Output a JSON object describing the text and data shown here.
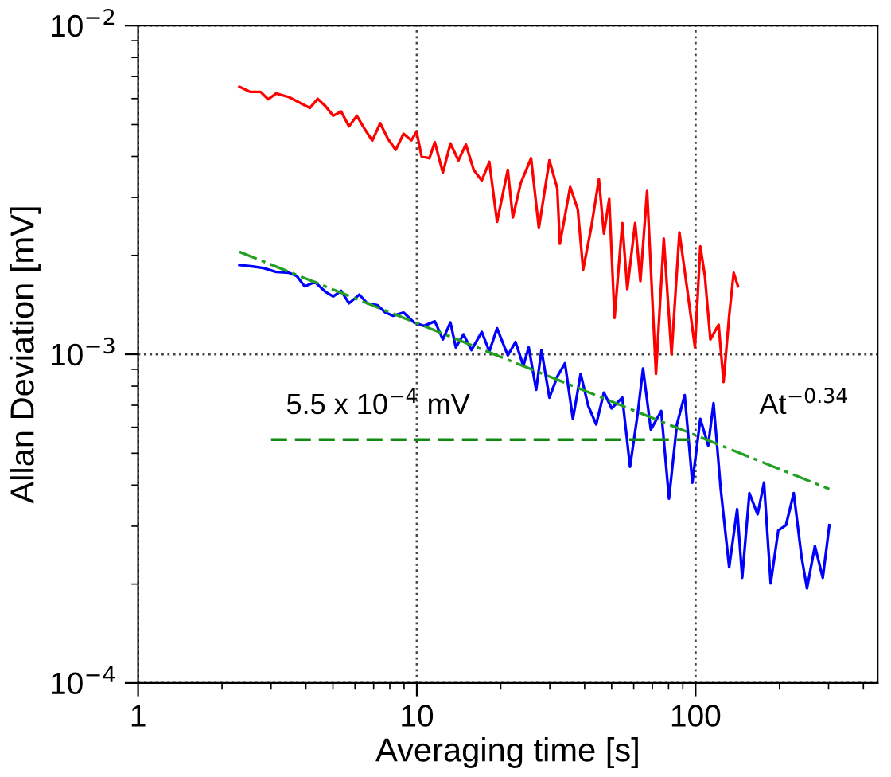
{
  "chart_data": {
    "type": "line",
    "xlabel": "Averaging time [s]",
    "ylabel": "Allan Deviation [mV]",
    "log": "xy",
    "grid": true,
    "xlim": [
      1,
      450
    ],
    "xticks": [
      1,
      10,
      100
    ],
    "ylim": [
      0.0001,
      0.01
    ],
    "yticks": [
      {
        "value": 0.0001,
        "label": "10$^{−4}$"
      },
      {
        "value": 0.001,
        "label": "10$^{−3}$"
      },
      {
        "value": 0.01,
        "label": "10$^{−2}$"
      }
    ],
    "series": [
      {
        "color": "#ff0000",
        "x": [
          2.31,
          2.52,
          2.75,
          2.93,
          3.13,
          3.48,
          3.79,
          4.13,
          4.41,
          4.7,
          5.01,
          5.35,
          5.71,
          6.09,
          6.49,
          6.92,
          7.39,
          7.88,
          8.4,
          8.96,
          9.56,
          9.98,
          10.4,
          11.1,
          11.6,
          12.4,
          13.2,
          14.1,
          15.0,
          16.0,
          17.1,
          18.2,
          19.4,
          21.2,
          22.1,
          23.6,
          25.7,
          27.4,
          29.9,
          31.9,
          32.6,
          35.5,
          37.8,
          39.5,
          42.2,
          45.0,
          46.9,
          49.0,
          51.2,
          54.6,
          56.9,
          60.7,
          63.4,
          67.0,
          72.1,
          76.9,
          82.0,
          87.5,
          93.3,
          99.5,
          104,
          108,
          113,
          121,
          126,
          132,
          137,
          142
        ],
        "values": [
          0.00652,
          0.00629,
          0.00629,
          0.00597,
          0.00622,
          0.00606,
          0.00584,
          0.00562,
          0.00599,
          0.00569,
          0.00532,
          0.00548,
          0.00494,
          0.00532,
          0.00486,
          0.00447,
          0.00505,
          0.00452,
          0.00419,
          0.00469,
          0.00448,
          0.00476,
          0.004,
          0.00395,
          0.00442,
          0.00357,
          0.00438,
          0.00389,
          0.00435,
          0.00364,
          0.00338,
          0.00385,
          0.00253,
          0.00364,
          0.00261,
          0.00332,
          0.00395,
          0.00242,
          0.00389,
          0.0032,
          0.00217,
          0.00323,
          0.00276,
          0.00181,
          0.00242,
          0.00341,
          0.00233,
          0.00297,
          0.00129,
          0.00251,
          0.00158,
          0.00251,
          0.00167,
          0.00314,
          0.000872,
          0.00225,
          0.001,
          0.00235,
          0.00158,
          0.00105,
          0.00213,
          0.00173,
          0.00111,
          0.00123,
          0.000824,
          0.00131,
          0.00177,
          0.00161
        ]
      },
      {
        "color": "#0000ff",
        "x": [
          2.31,
          2.58,
          2.81,
          3.13,
          3.48,
          3.71,
          3.96,
          4.31,
          4.7,
          5.01,
          5.35,
          5.71,
          6.22,
          6.63,
          7.23,
          7.71,
          8.22,
          8.96,
          9.77,
          10.6,
          11.6,
          12.4,
          13.2,
          13.8,
          14.7,
          15.7,
          17.1,
          18.2,
          19.4,
          21.2,
          22.6,
          24.1,
          25.2,
          26.8,
          28.0,
          29.9,
          31.9,
          34.0,
          36.3,
          38.7,
          41.2,
          44.0,
          46.9,
          50.0,
          54.6,
          58.2,
          62.0,
          64.8,
          69.1,
          75.3,
          80.3,
          85.7,
          91.4,
          97.4,
          104,
          111,
          116,
          123,
          132,
          141,
          147,
          156,
          167,
          176,
          186,
          198,
          211,
          225,
          240,
          251,
          268,
          286,
          302
        ],
        "values": [
          0.00187,
          0.00185,
          0.00183,
          0.00178,
          0.00177,
          0.00173,
          0.00161,
          0.00166,
          0.00155,
          0.0015,
          0.00156,
          0.00143,
          0.00152,
          0.00143,
          0.00141,
          0.00134,
          0.00131,
          0.00134,
          0.00125,
          0.00122,
          0.00126,
          0.00111,
          0.00125,
          0.00105,
          0.00115,
          0.00103,
          0.00117,
          0.00102,
          0.0012,
          0.000993,
          0.00109,
          0.000922,
          0.00105,
          0.00078,
          0.00103,
          0.000738,
          0.000855,
          0.000939,
          0.000636,
          0.000872,
          0.000697,
          0.000612,
          0.000765,
          0.000685,
          0.000738,
          0.000455,
          0.00066,
          0.000905,
          0.00059,
          0.000672,
          0.000364,
          0.000612,
          0.000751,
          0.000407,
          0.000636,
          0.000528,
          0.00071,
          0.000392,
          0.000225,
          0.000338,
          0.000209,
          0.000378,
          0.000326,
          0.000407,
          0.000201,
          0.000291,
          0.000302,
          0.000378,
          0.000242,
          0.000194,
          0.000261,
          0.000209,
          0.000302
        ]
      },
      {
        "color": "#22a022",
        "line_style": "dashdot",
        "x": [
          2.31,
          302
        ],
        "values": [
          0.00205,
          0.000389
        ]
      },
      {
        "color": "#138a13",
        "line_style": "dashed",
        "x": [
          3,
          95
        ],
        "values": [
          0.00055,
          0.00055
        ]
      }
    ],
    "annotations": [
      "5.5 x 10$^{−4}$ mV",
      "At$^{−0.34}$"
    ]
  }
}
